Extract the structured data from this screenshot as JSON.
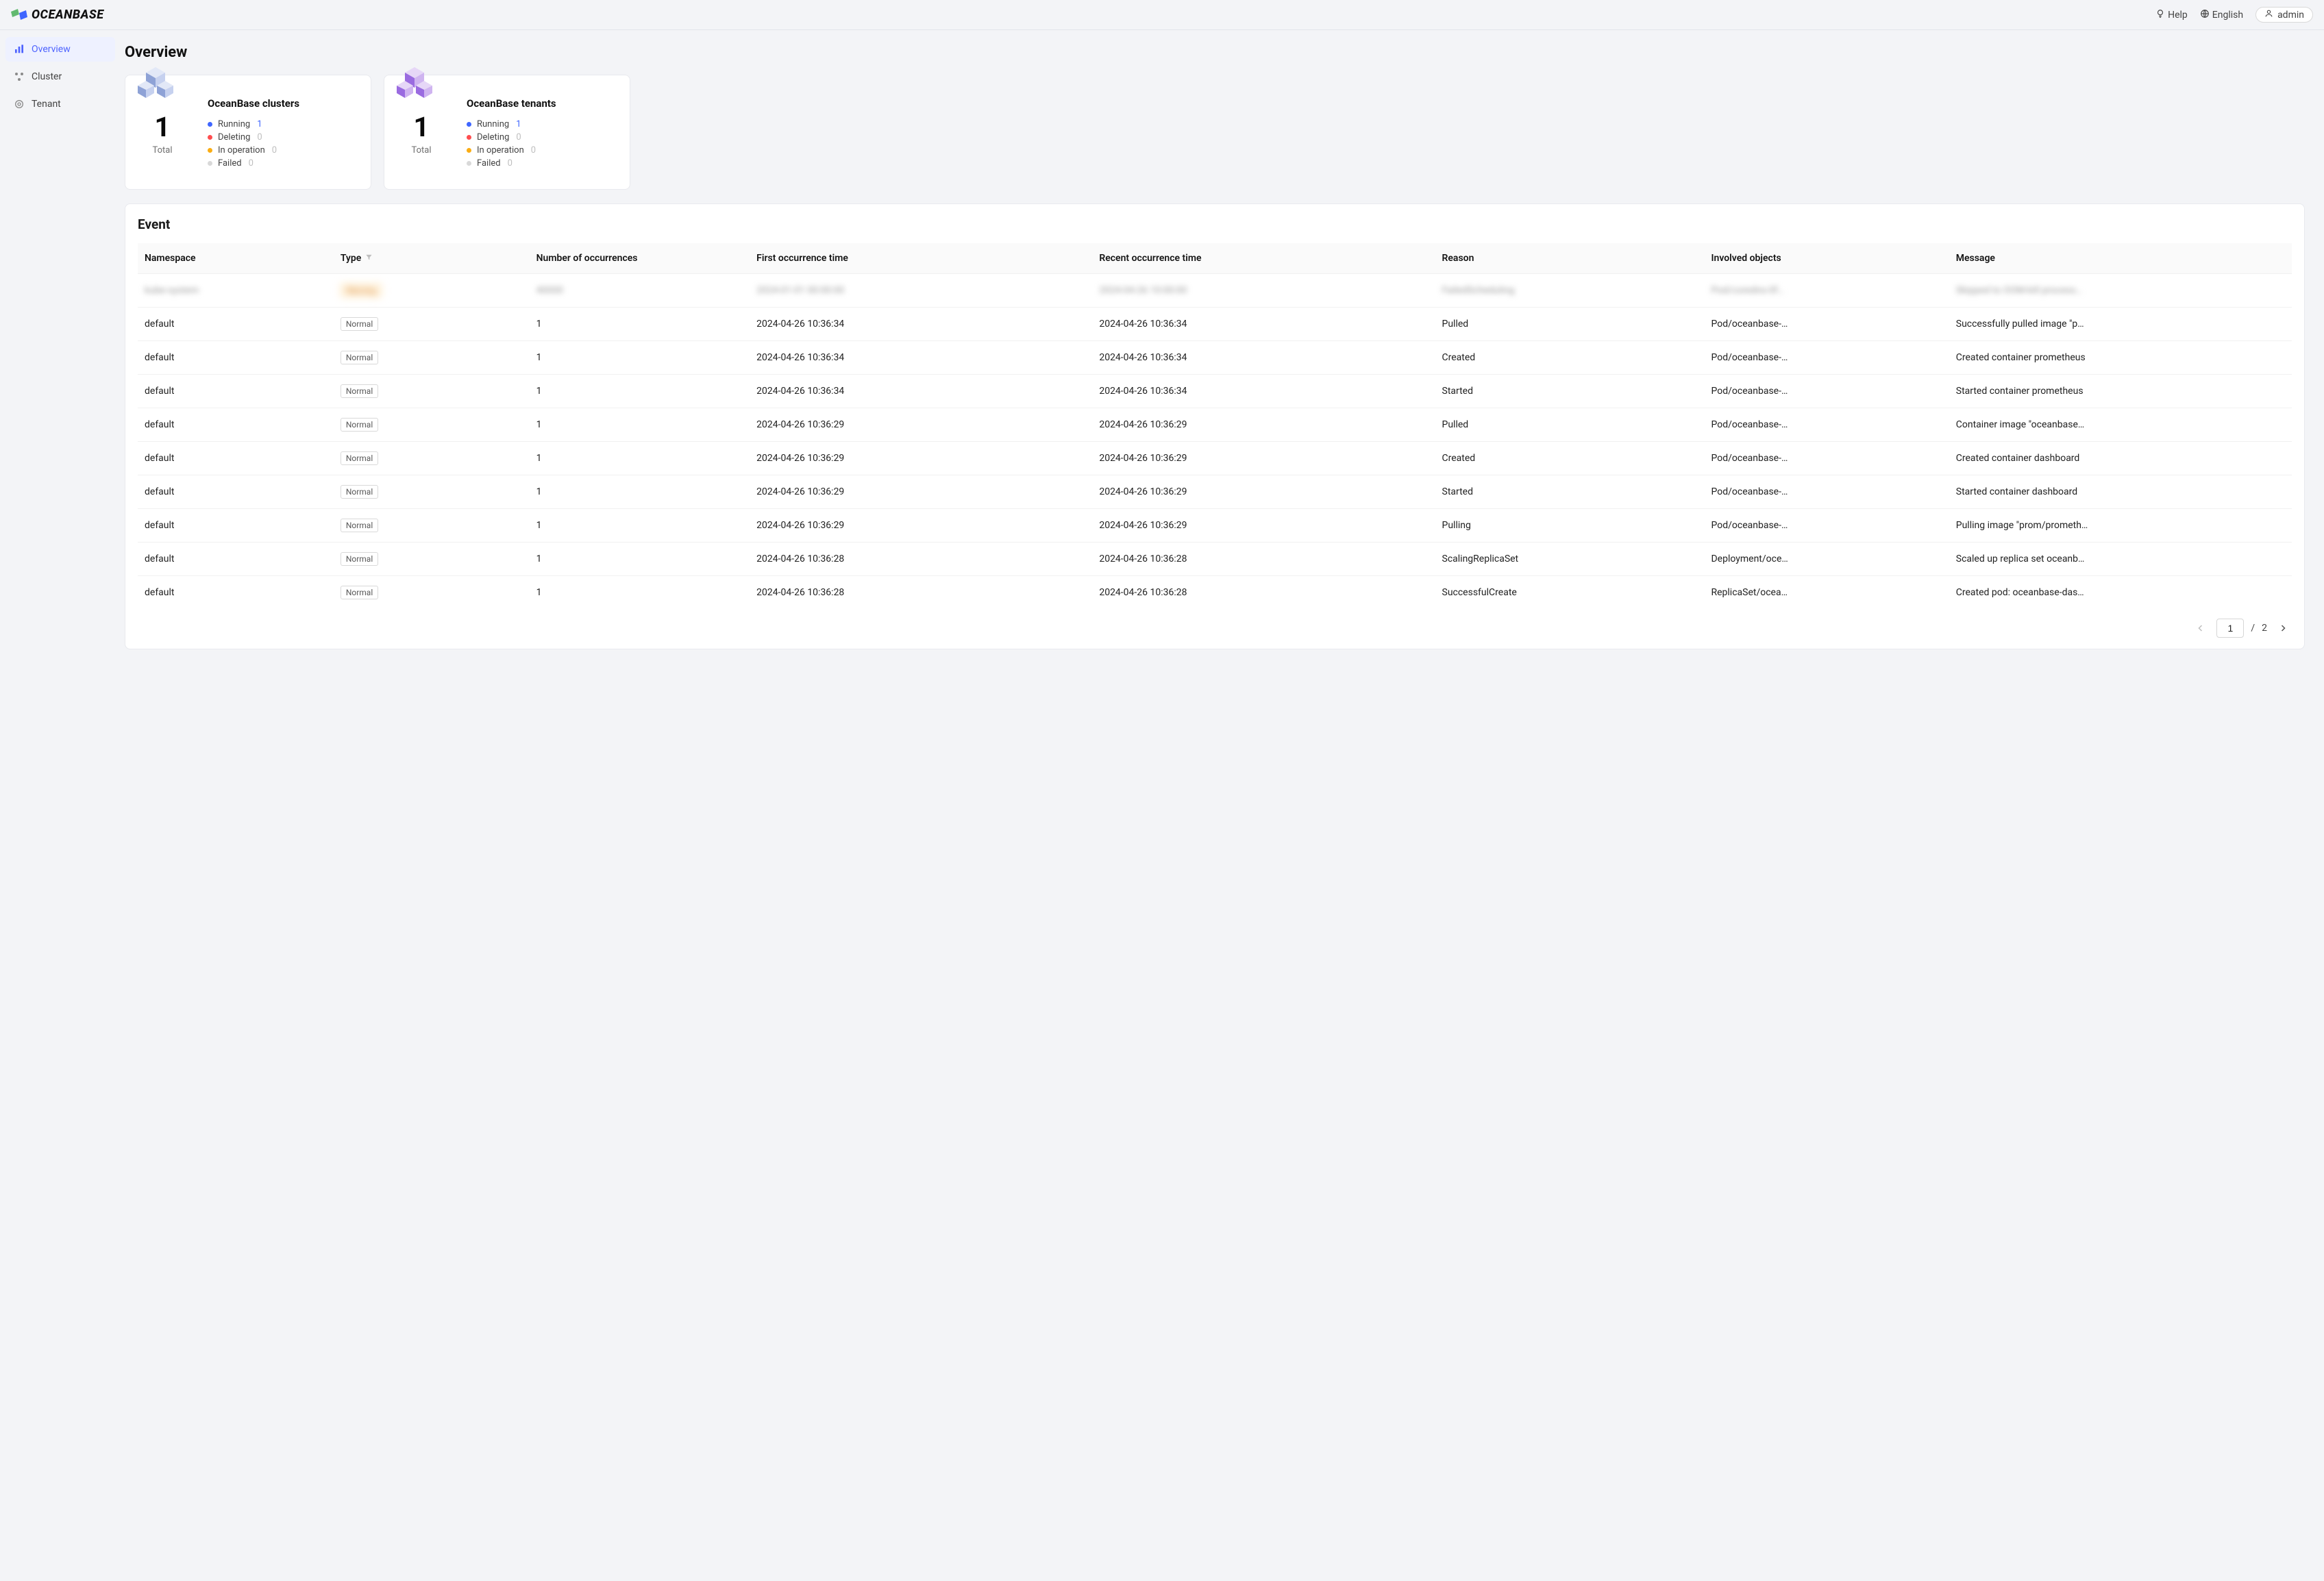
{
  "brand": {
    "name": "OCEANBASE"
  },
  "topbar": {
    "help_label": "Help",
    "language_label": "English",
    "user_label": "admin"
  },
  "sidebar": {
    "items": [
      {
        "label": "Overview",
        "active": true
      },
      {
        "label": "Cluster",
        "active": false
      },
      {
        "label": "Tenant",
        "active": false
      }
    ]
  },
  "page": {
    "title": "Overview"
  },
  "colors": {
    "accent": "#4e63ff",
    "running": "#3f66ff",
    "deleting": "#ff4d4f",
    "in_operation": "#faad14",
    "failed": "#d9d9d9",
    "cluster_cube": "#8ea2d6",
    "tenant_cube": "#9a6be0",
    "page_bg": "#f3f4f7",
    "card_bg": "#ffffff",
    "border": "#e8e9ee",
    "text": "#1a1a1a",
    "muted": "#bfbfbf"
  },
  "summary_cards": [
    {
      "id": "clusters",
      "title": "OceanBase clusters",
      "total_label": "Total",
      "total": "1",
      "statuses": [
        {
          "label": "Running",
          "value": "1",
          "color_key": "running",
          "is_link": true
        },
        {
          "label": "Deleting",
          "value": "0",
          "color_key": "deleting",
          "is_link": false
        },
        {
          "label": "In operation",
          "value": "0",
          "color_key": "in_operation",
          "is_link": false
        },
        {
          "label": "Failed",
          "value": "0",
          "color_key": "failed",
          "is_link": false
        }
      ]
    },
    {
      "id": "tenants",
      "title": "OceanBase tenants",
      "total_label": "Total",
      "total": "1",
      "statuses": [
        {
          "label": "Running",
          "value": "1",
          "color_key": "running",
          "is_link": true
        },
        {
          "label": "Deleting",
          "value": "0",
          "color_key": "deleting",
          "is_link": false
        },
        {
          "label": "In operation",
          "value": "0",
          "color_key": "in_operation",
          "is_link": false
        },
        {
          "label": "Failed",
          "value": "0",
          "color_key": "failed",
          "is_link": false
        }
      ]
    }
  ],
  "events": {
    "title": "Event",
    "columns": [
      {
        "key": "namespace",
        "label": "Namespace",
        "width": "8%"
      },
      {
        "key": "type",
        "label": "Type",
        "width": "8%",
        "filter": true
      },
      {
        "key": "occurrences",
        "label": "Number of occurrences",
        "width": "9%"
      },
      {
        "key": "first_time",
        "label": "First occurrence time",
        "width": "14%"
      },
      {
        "key": "recent_time",
        "label": "Recent occurrence time",
        "width": "14%"
      },
      {
        "key": "reason",
        "label": "Reason",
        "width": "11%"
      },
      {
        "key": "objects",
        "label": "Involved objects",
        "width": "10%"
      },
      {
        "key": "message",
        "label": "Message",
        "width": "14%"
      }
    ],
    "rows": [
      {
        "blurred": true,
        "namespace": "kube-system",
        "type": "Warning",
        "type_warn": true,
        "occurrences": "40000",
        "first_time": "2024-01-01 00:00:00",
        "recent_time": "2024-04-26 10:00:00",
        "reason": "FailedScheduling",
        "objects": "Pod/coredns-0f…",
        "message": "Skipped to OOM-kill process…"
      },
      {
        "namespace": "default",
        "type": "Normal",
        "occurrences": "1",
        "first_time": "2024-04-26 10:36:34",
        "recent_time": "2024-04-26 10:36:34",
        "reason": "Pulled",
        "objects": "Pod/oceanbase-…",
        "message": "Successfully pulled image \"p…"
      },
      {
        "namespace": "default",
        "type": "Normal",
        "occurrences": "1",
        "first_time": "2024-04-26 10:36:34",
        "recent_time": "2024-04-26 10:36:34",
        "reason": "Created",
        "objects": "Pod/oceanbase-…",
        "message": "Created container prometheus"
      },
      {
        "namespace": "default",
        "type": "Normal",
        "occurrences": "1",
        "first_time": "2024-04-26 10:36:34",
        "recent_time": "2024-04-26 10:36:34",
        "reason": "Started",
        "objects": "Pod/oceanbase-…",
        "message": "Started container prometheus"
      },
      {
        "namespace": "default",
        "type": "Normal",
        "occurrences": "1",
        "first_time": "2024-04-26 10:36:29",
        "recent_time": "2024-04-26 10:36:29",
        "reason": "Pulled",
        "objects": "Pod/oceanbase-…",
        "message": "Container image \"oceanbase…"
      },
      {
        "namespace": "default",
        "type": "Normal",
        "occurrences": "1",
        "first_time": "2024-04-26 10:36:29",
        "recent_time": "2024-04-26 10:36:29",
        "reason": "Created",
        "objects": "Pod/oceanbase-…",
        "message": "Created container dashboard"
      },
      {
        "namespace": "default",
        "type": "Normal",
        "occurrences": "1",
        "first_time": "2024-04-26 10:36:29",
        "recent_time": "2024-04-26 10:36:29",
        "reason": "Started",
        "objects": "Pod/oceanbase-…",
        "message": "Started container dashboard"
      },
      {
        "namespace": "default",
        "type": "Normal",
        "occurrences": "1",
        "first_time": "2024-04-26 10:36:29",
        "recent_time": "2024-04-26 10:36:29",
        "reason": "Pulling",
        "objects": "Pod/oceanbase-…",
        "message": "Pulling image \"prom/prometh…"
      },
      {
        "namespace": "default",
        "type": "Normal",
        "occurrences": "1",
        "first_time": "2024-04-26 10:36:28",
        "recent_time": "2024-04-26 10:36:28",
        "reason": "ScalingReplicaSet",
        "objects": "Deployment/oce…",
        "message": "Scaled up replica set oceanb…"
      },
      {
        "namespace": "default",
        "type": "Normal",
        "occurrences": "1",
        "first_time": "2024-04-26 10:36:28",
        "recent_time": "2024-04-26 10:36:28",
        "reason": "SuccessfulCreate",
        "objects": "ReplicaSet/ocea…",
        "message": "Created pod: oceanbase-das…"
      }
    ],
    "pagination": {
      "current": "1",
      "separator": "/",
      "total": "2"
    }
  }
}
